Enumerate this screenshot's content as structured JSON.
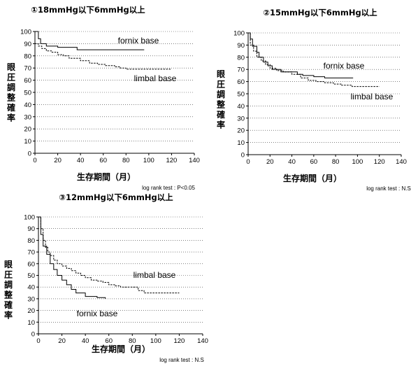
{
  "chart_data": [
    {
      "type": "line",
      "title": "①18mmHg以下6mmHg以上",
      "xlabel": "生存期間（月）",
      "ylabel": "眼圧調整確率",
      "xlim": [
        0,
        140
      ],
      "ylim": [
        0,
        100
      ],
      "xticks": [
        "0",
        "20",
        "40",
        "60",
        "80",
        "100",
        "120",
        "140"
      ],
      "yticks": [
        "0",
        "10",
        "20",
        "30",
        "40",
        "50",
        "60",
        "70",
        "80",
        "90",
        "100"
      ],
      "grid": "horizontal dotted",
      "annotation": "log rank test : P<0.05",
      "series": [
        {
          "name": "fornix base",
          "color": "#000000",
          "points": [
            [
              0,
              100
            ],
            [
              3,
              94
            ],
            [
              5,
              90
            ],
            [
              10,
              88
            ],
            [
              20,
              87
            ],
            [
              35,
              87
            ],
            [
              37,
              85
            ],
            [
              96,
              85
            ]
          ]
        },
        {
          "name": "limbal base",
          "color": "#000000",
          "points": [
            [
              0,
              90
            ],
            [
              3,
              88
            ],
            [
              6,
              86
            ],
            [
              10,
              84
            ],
            [
              15,
              83
            ],
            [
              20,
              81
            ],
            [
              25,
              80
            ],
            [
              30,
              78
            ],
            [
              40,
              76
            ],
            [
              48,
              74
            ],
            [
              55,
              73
            ],
            [
              62,
              72
            ],
            [
              70,
              71
            ],
            [
              75,
              70
            ],
            [
              80,
              69
            ],
            [
              120,
              69
            ]
          ]
        }
      ]
    },
    {
      "type": "line",
      "title": "②15mmHg以下6mmHg以上",
      "xlabel": "生存期間（月）",
      "ylabel": "眼圧調整確率",
      "xlim": [
        0,
        140
      ],
      "ylim": [
        0,
        100
      ],
      "xticks": [
        "0",
        "20",
        "40",
        "60",
        "80",
        "100",
        "120",
        "140"
      ],
      "yticks": [
        "0",
        "10",
        "20",
        "30",
        "40",
        "50",
        "60",
        "70",
        "80",
        "90",
        "100"
      ],
      "grid": "horizontal dotted",
      "annotation": "log rank test : N.S",
      "series": [
        {
          "name": "fornix base",
          "color": "#000000",
          "points": [
            [
              0,
              100
            ],
            [
              2,
              95
            ],
            [
              4,
              89
            ],
            [
              8,
              84
            ],
            [
              10,
              80
            ],
            [
              14,
              76
            ],
            [
              18,
              73
            ],
            [
              22,
              70
            ],
            [
              30,
              68
            ],
            [
              40,
              68
            ],
            [
              45,
              66
            ],
            [
              50,
              65
            ],
            [
              60,
              64
            ],
            [
              70,
              63
            ],
            [
              96,
              63
            ]
          ]
        },
        {
          "name": "limbal base",
          "color": "#000000",
          "points": [
            [
              0,
              100
            ],
            [
              2,
              90
            ],
            [
              5,
              85
            ],
            [
              8,
              80
            ],
            [
              12,
              77
            ],
            [
              16,
              74
            ],
            [
              20,
              71
            ],
            [
              26,
              69
            ],
            [
              32,
              68
            ],
            [
              40,
              66
            ],
            [
              48,
              63
            ],
            [
              55,
              61
            ],
            [
              62,
              60
            ],
            [
              70,
              59
            ],
            [
              78,
              58
            ],
            [
              85,
              57
            ],
            [
              95,
              56
            ],
            [
              120,
              56
            ]
          ]
        }
      ]
    },
    {
      "type": "line",
      "title": "③12mmHg以下6mmHg以上",
      "xlabel": "生存期間（月）",
      "ylabel": "眼圧調整確率",
      "xlim": [
        0,
        140
      ],
      "ylim": [
        0,
        100
      ],
      "xticks": [
        "0",
        "20",
        "40",
        "60",
        "80",
        "100",
        "120",
        "140"
      ],
      "yticks": [
        "0",
        "10",
        "20",
        "30",
        "40",
        "50",
        "60",
        "70",
        "80",
        "90",
        "100"
      ],
      "grid": "horizontal dotted",
      "annotation": "log rank test : N.S",
      "series": [
        {
          "name": "fornix base",
          "color": "#000000",
          "points": [
            [
              0,
              100
            ],
            [
              2,
              85
            ],
            [
              4,
              75
            ],
            [
              7,
              68
            ],
            [
              10,
              60
            ],
            [
              13,
              55
            ],
            [
              16,
              50
            ],
            [
              20,
              46
            ],
            [
              24,
              42
            ],
            [
              28,
              38
            ],
            [
              32,
              35
            ],
            [
              40,
              32
            ],
            [
              50,
              31
            ],
            [
              57,
              30
            ]
          ]
        },
        {
          "name": "limbal base",
          "color": "#000000",
          "points": [
            [
              0,
              100
            ],
            [
              2,
              90
            ],
            [
              4,
              80
            ],
            [
              6,
              74
            ],
            [
              8,
              70
            ],
            [
              10,
              67
            ],
            [
              13,
              63
            ],
            [
              16,
              60
            ],
            [
              20,
              58
            ],
            [
              24,
              56
            ],
            [
              28,
              54
            ],
            [
              32,
              52
            ],
            [
              36,
              50
            ],
            [
              40,
              48
            ],
            [
              45,
              46
            ],
            [
              50,
              45
            ],
            [
              55,
              44
            ],
            [
              60,
              42
            ],
            [
              65,
              41
            ],
            [
              70,
              40
            ],
            [
              80,
              40
            ],
            [
              85,
              37
            ],
            [
              90,
              35
            ],
            [
              120,
              35
            ]
          ]
        }
      ]
    }
  ]
}
